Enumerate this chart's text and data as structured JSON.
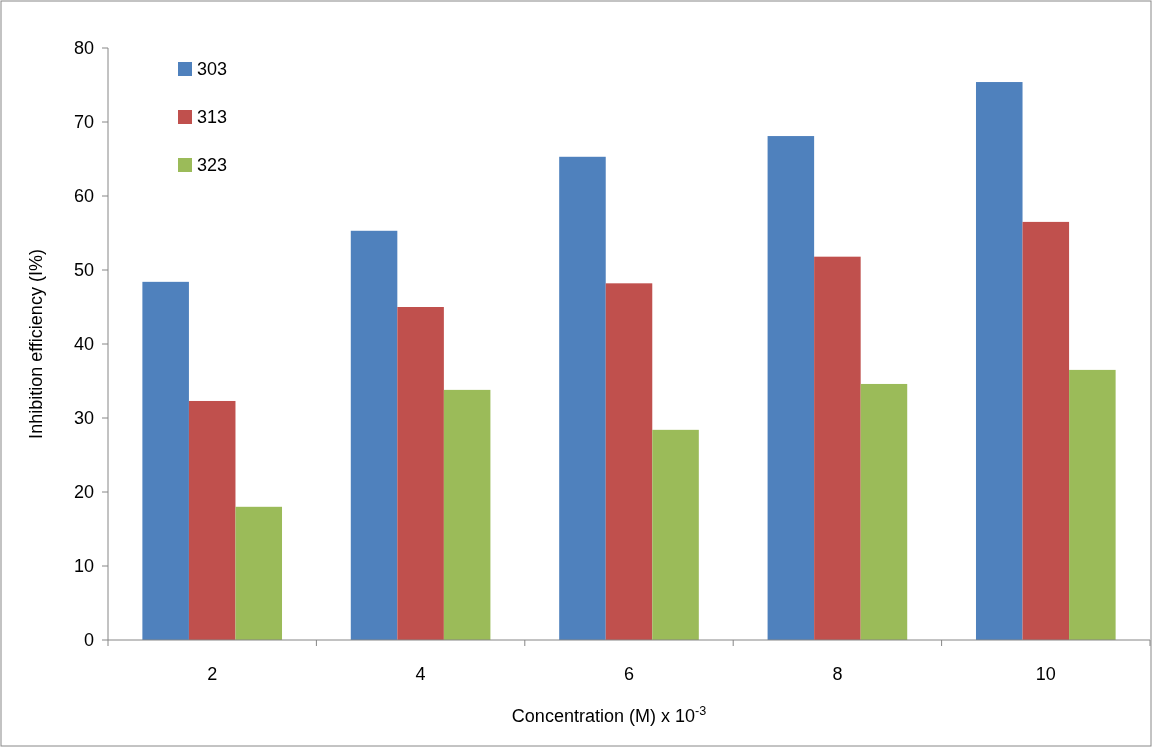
{
  "chart_data": {
    "type": "bar",
    "xlabel": "Concentration (M) x 10$^{-3}$",
    "ylabel": "Inhibition efficiency (I%)",
    "categories": [
      "2",
      "4",
      "6",
      "8",
      "10"
    ],
    "series": [
      {
        "name": "303",
        "color": "#4f81bd",
        "values": [
          48.4,
          55.3,
          65.3,
          68.1,
          75.4
        ]
      },
      {
        "name": "313",
        "color": "#c0504d",
        "values": [
          32.3,
          45,
          48.2,
          51.8,
          56.5
        ]
      },
      {
        "name": "323",
        "color": "#9bbb59",
        "values": [
          18,
          33.8,
          28.4,
          34.6,
          36.5
        ]
      }
    ],
    "ylim": [
      0,
      80
    ],
    "yticks": [
      0,
      10,
      20,
      30,
      40,
      50,
      60,
      70,
      80
    ],
    "legend": "top left"
  }
}
